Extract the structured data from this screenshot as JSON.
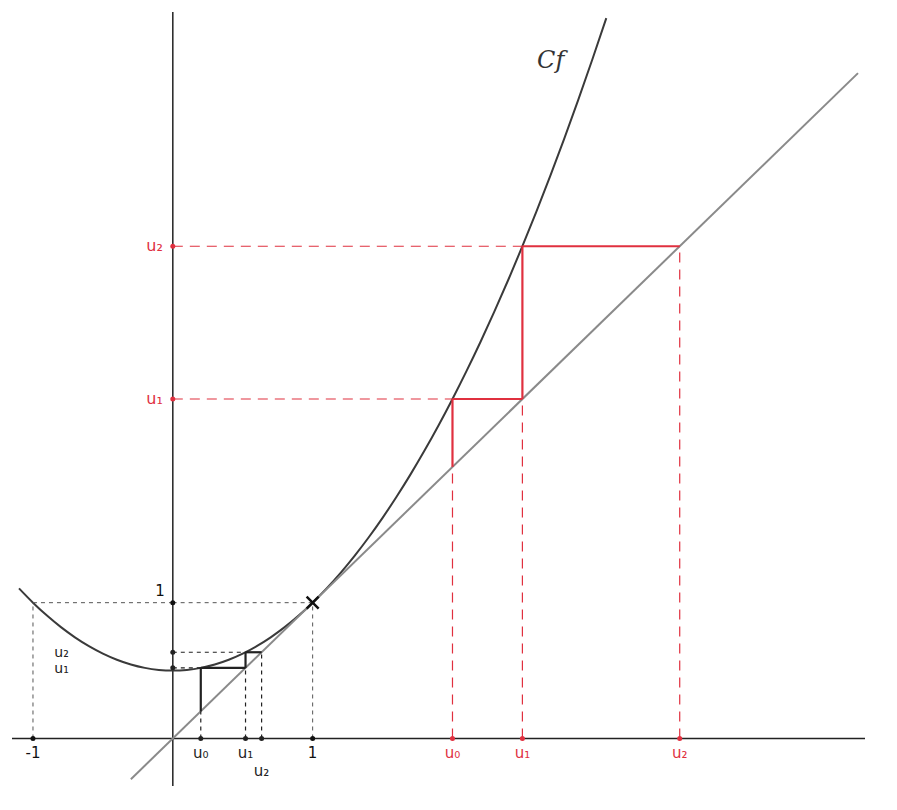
{
  "chart_data": {
    "type": "line",
    "xlim": [
      -1.15,
      4.95
    ],
    "ylim": [
      -0.35,
      5.35
    ],
    "xticks": [
      -1,
      1
    ],
    "yticks": [
      1
    ],
    "grid": false,
    "series": [
      {
        "type": "line",
        "color": "#3a3a3a",
        "x": [
          -1.1,
          -1.0,
          -0.9,
          -0.8,
          -0.7,
          -0.6,
          -0.5,
          -0.4,
          -0.3,
          -0.2,
          -0.1,
          0,
          0.1,
          0.2,
          0.3,
          0.4,
          0.5,
          0.6,
          0.7,
          0.8,
          0.9,
          1.0,
          1.1,
          1.2,
          1.3,
          1.4,
          1.5,
          1.6,
          1.7,
          1.8,
          1.9,
          2.0,
          2.1,
          2.2,
          2.3,
          2.4,
          2.5,
          2.6,
          2.7,
          2.8,
          2.9,
          3.0,
          3.1
        ],
        "values": [
          1.105,
          1,
          0.905,
          0.82,
          0.745,
          0.68,
          0.625,
          0.58,
          0.545,
          0.52,
          0.505,
          0.5,
          0.505,
          0.52,
          0.545,
          0.58,
          0.625,
          0.68,
          0.745,
          0.82,
          0.905,
          1,
          1.105,
          1.22,
          1.345,
          1.48,
          1.625,
          1.78,
          1.945,
          2.12,
          2.305,
          2.5,
          2.705,
          2.92,
          3.145,
          3.38,
          3.625,
          3.88,
          4.145,
          4.42,
          4.705,
          5.0,
          5.305
        ]
      },
      {
        "type": "line",
        "color": "#8a8a8a",
        "x": [
          -0.3,
          4.9
        ],
        "values": [
          -0.3,
          4.9
        ]
      }
    ],
    "annotations": [
      {
        "text": "Cf",
        "x": 2.8,
        "y": 5.0
      }
    ],
    "guides": [
      {
        "x": -1,
        "y": 1
      },
      {
        "x": 1,
        "y": 1,
        "marker": "x"
      }
    ],
    "sequences": [
      {
        "color": "#222222",
        "values": [
          0.2,
          0.52,
          0.635
        ],
        "labels": [
          "u₀",
          "u₁",
          "u₂"
        ]
      },
      {
        "color": "#e0303f",
        "values": [
          2,
          2.5,
          3.625
        ],
        "labels": [
          "u₀",
          "u₁",
          "u₂"
        ]
      }
    ]
  }
}
